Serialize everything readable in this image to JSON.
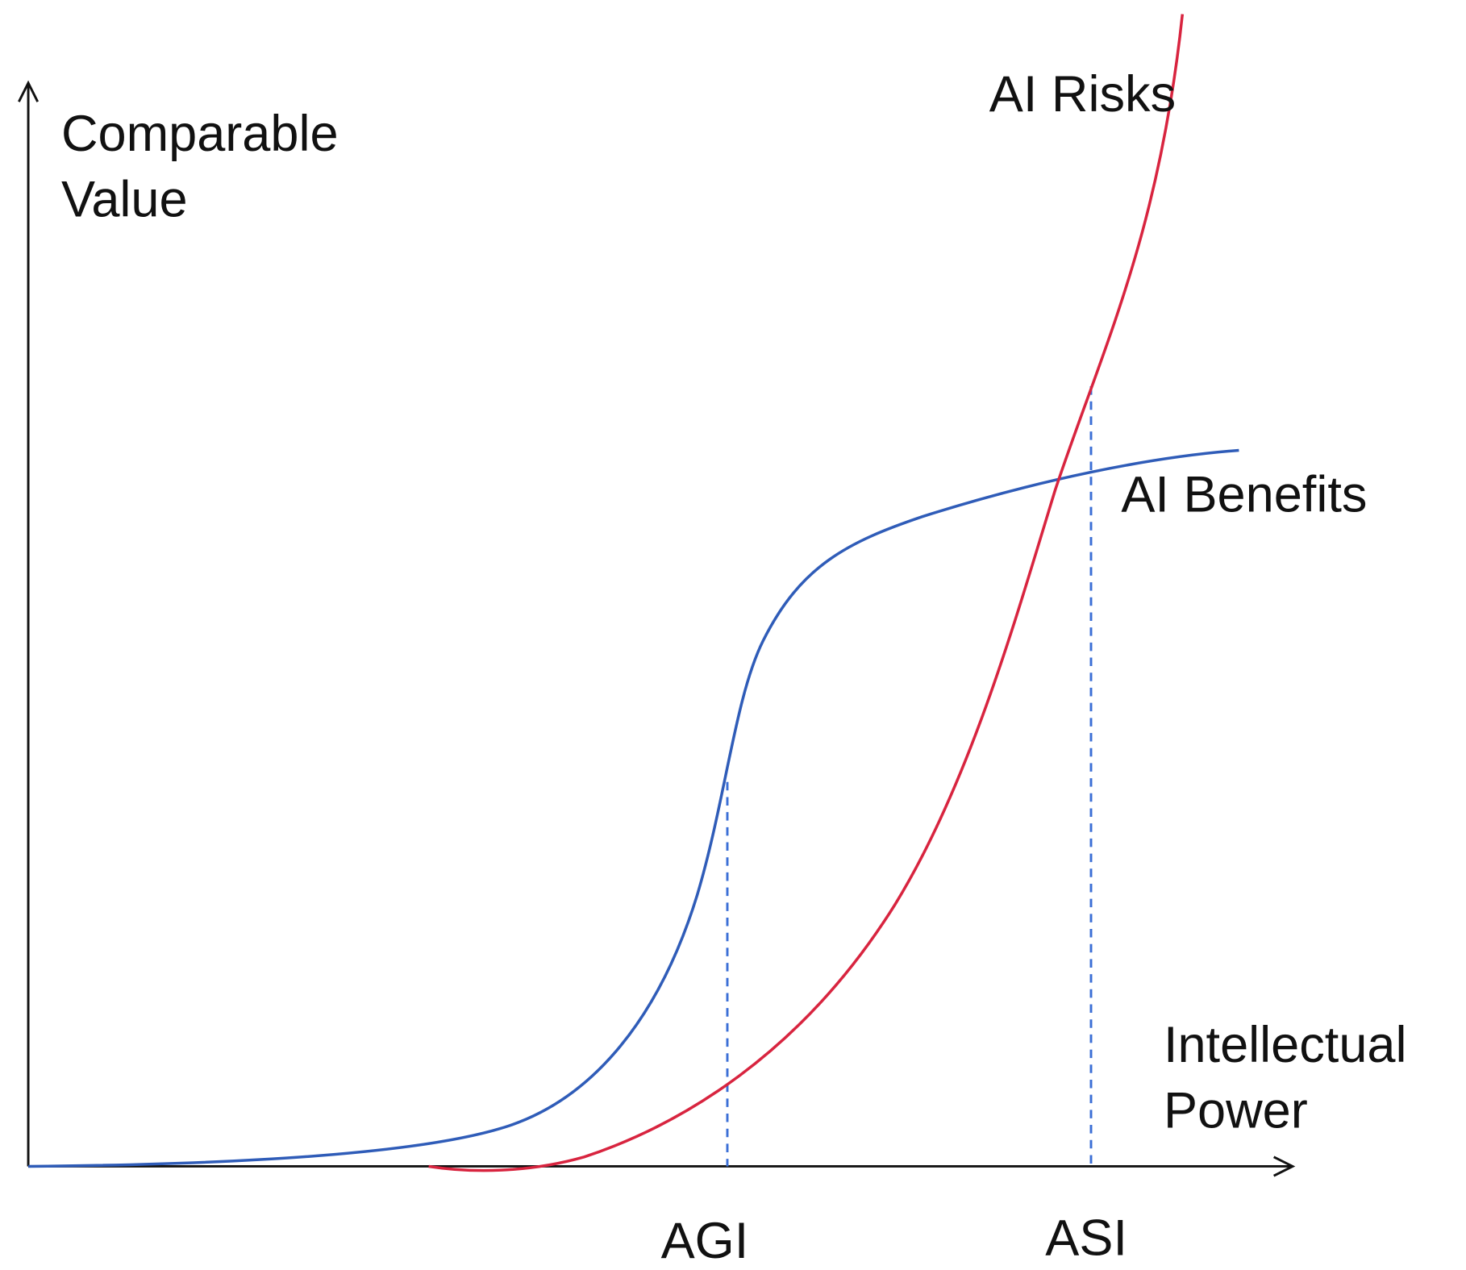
{
  "y_axis_label": [
    "Comparable",
    "Value"
  ],
  "x_axis_label": [
    "Intellectual",
    "Power"
  ],
  "curves": [
    {
      "label": "AI Benefits"
    },
    {
      "label": "AI Risks"
    }
  ],
  "markers": [
    "AGI",
    "ASI"
  ]
}
